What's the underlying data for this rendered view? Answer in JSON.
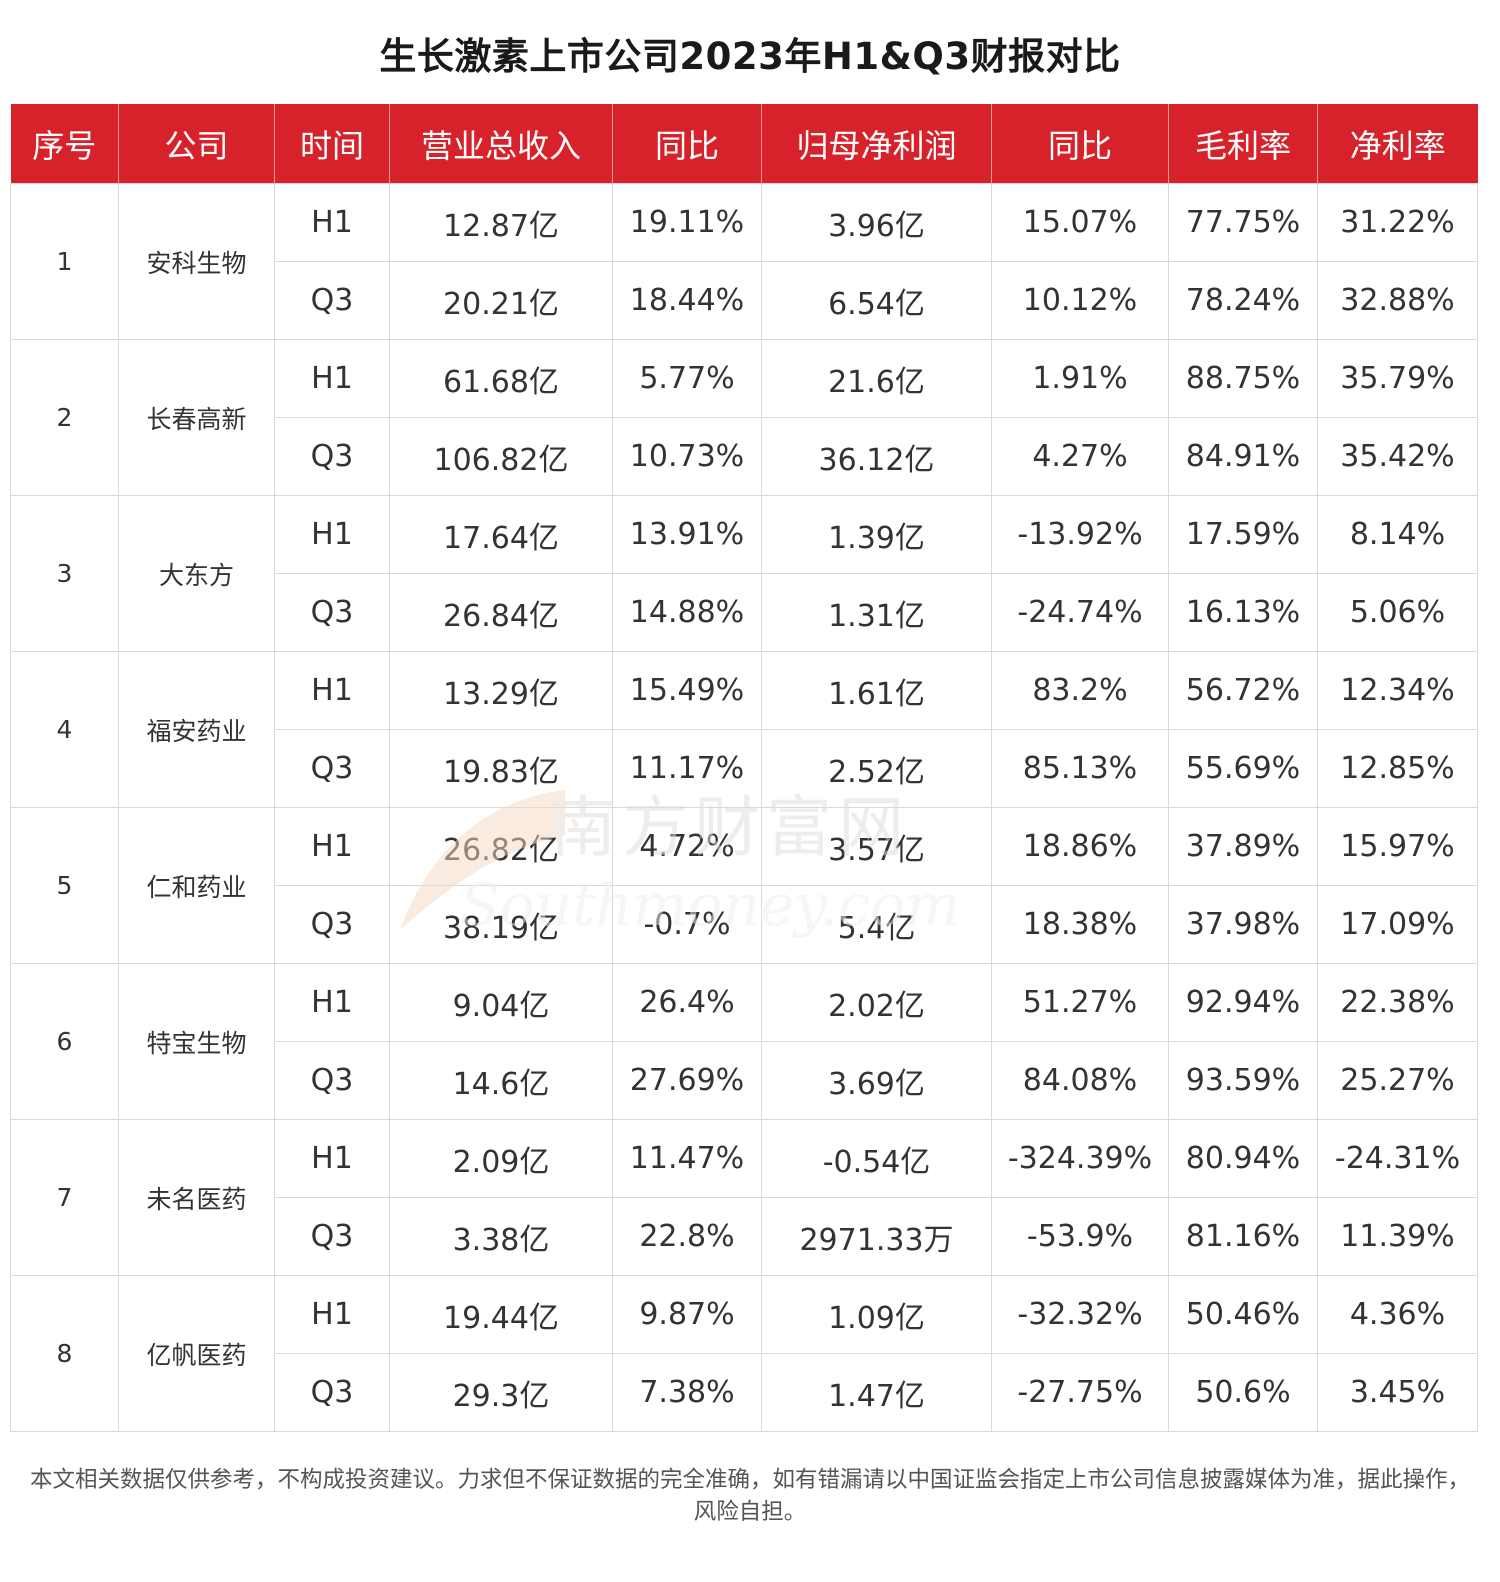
{
  "title": "生长激素上市公司2023年H1&Q3财报对比",
  "colors": {
    "header_bg": "#d8222b",
    "header_text": "#ffffff",
    "border": "#d9d9d9"
  },
  "watermark": {
    "cn": "南方财富网",
    "en": "Southmoney.com"
  },
  "footer": "本文相关数据仅供参考，不构成投资建议。力求但不保证数据的完全准确，如有错漏请以中国证监会指定上市公司信息披露媒体为准，据此操作，风险自担。",
  "chart_data": {
    "type": "table",
    "columns": [
      "序号",
      "公司",
      "时间",
      "营业总收入",
      "同比",
      "归母净利润",
      "同比",
      "毛利率",
      "净利率"
    ],
    "groups": [
      {
        "index": "1",
        "company": "安科生物",
        "rows": [
          [
            "H1",
            "12.87亿",
            "19.11%",
            "3.96亿",
            "15.07%",
            "77.75%",
            "31.22%"
          ],
          [
            "Q3",
            "20.21亿",
            "18.44%",
            "6.54亿",
            "10.12%",
            "78.24%",
            "32.88%"
          ]
        ]
      },
      {
        "index": "2",
        "company": "长春高新",
        "rows": [
          [
            "H1",
            "61.68亿",
            "5.77%",
            "21.6亿",
            "1.91%",
            "88.75%",
            "35.79%"
          ],
          [
            "Q3",
            "106.82亿",
            "10.73%",
            "36.12亿",
            "4.27%",
            "84.91%",
            "35.42%"
          ]
        ]
      },
      {
        "index": "3",
        "company": "大东方",
        "rows": [
          [
            "H1",
            "17.64亿",
            "13.91%",
            "1.39亿",
            "-13.92%",
            "17.59%",
            "8.14%"
          ],
          [
            "Q3",
            "26.84亿",
            "14.88%",
            "1.31亿",
            "-24.74%",
            "16.13%",
            "5.06%"
          ]
        ]
      },
      {
        "index": "4",
        "company": "福安药业",
        "rows": [
          [
            "H1",
            "13.29亿",
            "15.49%",
            "1.61亿",
            "83.2%",
            "56.72%",
            "12.34%"
          ],
          [
            "Q3",
            "19.83亿",
            "11.17%",
            "2.52亿",
            "85.13%",
            "55.69%",
            "12.85%"
          ]
        ]
      },
      {
        "index": "5",
        "company": "仁和药业",
        "rows": [
          [
            "H1",
            "26.82亿",
            "4.72%",
            "3.57亿",
            "18.86%",
            "37.89%",
            "15.97%"
          ],
          [
            "Q3",
            "38.19亿",
            "-0.7%",
            "5.4亿",
            "18.38%",
            "37.98%",
            "17.09%"
          ]
        ]
      },
      {
        "index": "6",
        "company": "特宝生物",
        "rows": [
          [
            "H1",
            "9.04亿",
            "26.4%",
            "2.02亿",
            "51.27%",
            "92.94%",
            "22.38%"
          ],
          [
            "Q3",
            "14.6亿",
            "27.69%",
            "3.69亿",
            "84.08%",
            "93.59%",
            "25.27%"
          ]
        ]
      },
      {
        "index": "7",
        "company": "未名医药",
        "rows": [
          [
            "H1",
            "2.09亿",
            "11.47%",
            "-0.54亿",
            "-324.39%",
            "80.94%",
            "-24.31%"
          ],
          [
            "Q3",
            "3.38亿",
            "22.8%",
            "2971.33万",
            "-53.9%",
            "81.16%",
            "11.39%"
          ]
        ]
      },
      {
        "index": "8",
        "company": "亿帆医药",
        "rows": [
          [
            "H1",
            "19.44亿",
            "9.87%",
            "1.09亿",
            "-32.32%",
            "50.46%",
            "4.36%"
          ],
          [
            "Q3",
            "29.3亿",
            "7.38%",
            "1.47亿",
            "-27.75%",
            "50.6%",
            "3.45%"
          ]
        ]
      }
    ]
  }
}
